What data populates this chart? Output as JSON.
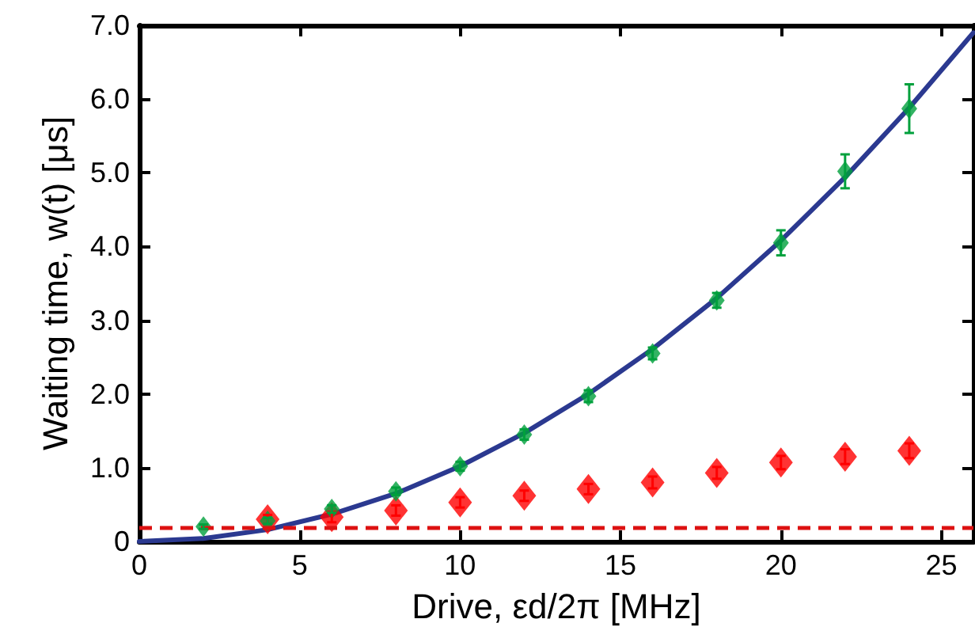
{
  "chart_data": {
    "type": "scatter",
    "xlabel": "Drive, εd/2π [MHz]",
    "ylabel": "Waiting time, w(t) [μs]",
    "xlim": [
      0,
      26
    ],
    "xticks": [
      0,
      5,
      10,
      15,
      20,
      25
    ],
    "ylim": [
      0,
      7
    ],
    "yticks": [
      0,
      {
        "value": 1,
        "label": "1.0"
      },
      {
        "value": 2,
        "label": "2.0"
      },
      {
        "value": 3,
        "label": "3.0"
      },
      {
        "value": 4,
        "label": "4.0"
      },
      {
        "value": 5,
        "label": "5.0"
      },
      {
        "value": 6,
        "label": "6.0"
      },
      {
        "value": 7,
        "label": "7.0"
      }
    ],
    "grid": false,
    "legend": false,
    "marker": "diamond",
    "series": [
      {
        "type": "line",
        "color": "#2b3990",
        "marker": "none",
        "x": [
          0,
          2,
          4,
          6,
          8,
          10,
          12,
          14,
          16,
          18,
          20,
          22,
          24,
          26
        ],
        "values": [
          0,
          0.04,
          0.16,
          0.37,
          0.65,
          1.02,
          1.47,
          2.0,
          2.61,
          3.3,
          4.08,
          4.94,
          5.88,
          6.9
        ]
      },
      {
        "color": "#ff0000",
        "x": [
          4,
          6,
          8,
          10,
          12,
          14,
          16,
          18,
          20,
          22,
          24
        ],
        "values": [
          0.3,
          0.33,
          0.42,
          0.53,
          0.62,
          0.71,
          0.8,
          0.93,
          1.07,
          1.15,
          1.23
        ],
        "errors": [
          0.06,
          0.07,
          0.07,
          0.07,
          0.07,
          0.07,
          0.08,
          0.08,
          0.09,
          0.1,
          0.1
        ]
      },
      {
        "color": "#00a03c",
        "x": [
          2,
          4,
          6,
          8,
          10,
          12,
          14,
          16,
          18,
          20,
          22,
          24
        ],
        "values": [
          0.2,
          0.28,
          0.44,
          0.68,
          1.02,
          1.45,
          1.97,
          2.55,
          3.27,
          4.05,
          5.02,
          5.87
        ],
        "errors": [
          0.03,
          0.04,
          0.05,
          0.05,
          0.06,
          0.07,
          0.08,
          0.08,
          0.1,
          0.17,
          0.23,
          0.33
        ]
      }
    ],
    "ref_lines": [
      {
        "axis": "y",
        "value": 0.18,
        "color": "#dd1111",
        "line_style": "dashed"
      }
    ]
  }
}
